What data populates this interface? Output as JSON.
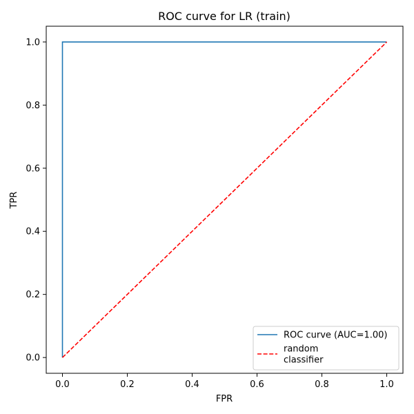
{
  "chart_data": {
    "type": "line",
    "title": "ROC curve for LR (train)",
    "xlabel": "FPR",
    "ylabel": "TPR",
    "xlim": [
      -0.05,
      1.05
    ],
    "ylim": [
      -0.05,
      1.05
    ],
    "xticks": [
      0.0,
      0.2,
      0.4,
      0.6,
      0.8,
      1.0
    ],
    "yticks": [
      0.0,
      0.2,
      0.4,
      0.6,
      0.8,
      1.0
    ],
    "xtick_labels": [
      "0.0",
      "0.2",
      "0.4",
      "0.6",
      "0.8",
      "1.0"
    ],
    "ytick_labels": [
      "0.0",
      "0.2",
      "0.4",
      "0.6",
      "0.8",
      "1.0"
    ],
    "grid": false,
    "legend_position": "lower-right",
    "series": [
      {
        "name": "ROC curve (AUC=1.00)",
        "legend_lines": [
          "ROC curve (AUC=1.00)"
        ],
        "x": [
          0.0,
          0.0,
          1.0
        ],
        "y": [
          0.0,
          1.0,
          1.0
        ],
        "color": "#1f77b4",
        "style": "solid"
      },
      {
        "name": "random classifier",
        "legend_lines": [
          "random",
          "classifier"
        ],
        "x": [
          0.0,
          1.0
        ],
        "y": [
          0.0,
          1.0
        ],
        "color": "#ff0000",
        "style": "dashed"
      }
    ]
  }
}
